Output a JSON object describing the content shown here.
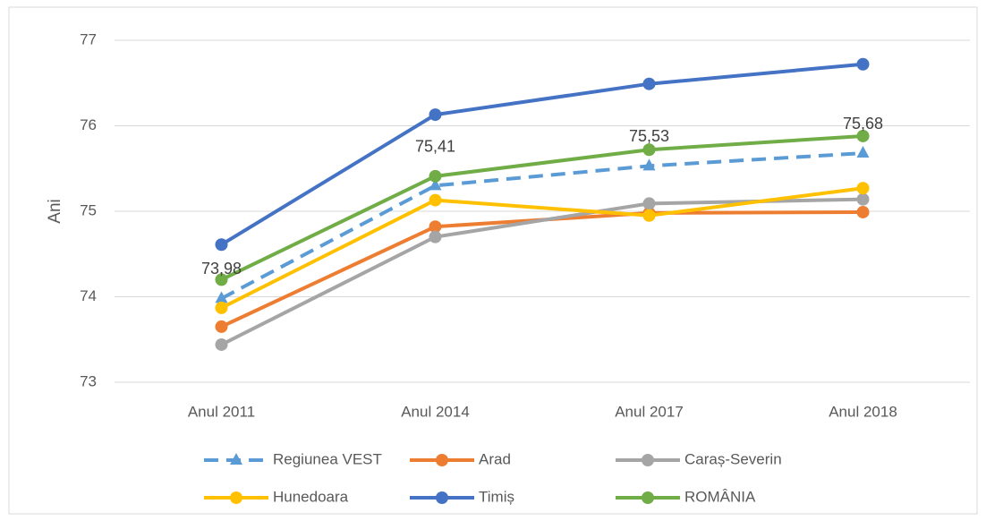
{
  "chart_data": {
    "type": "line",
    "y_label": "Ani",
    "categories": [
      "Anul 2011",
      "Anul 2014",
      "Anul 2017",
      "Anul 2018"
    ],
    "series": [
      {
        "name": "Regiunea VEST",
        "color": "#5b9bd5",
        "dashed": true,
        "marker": "triangle",
        "values": [
          73.98,
          75.3,
          75.53,
          75.68
        ],
        "value_labels": [
          "73,98",
          null,
          "75,53",
          "75,68"
        ]
      },
      {
        "name": "Arad",
        "color": "#ed7d31",
        "marker": "circle",
        "values": [
          73.65,
          74.82,
          74.98,
          74.99
        ]
      },
      {
        "name": "Caraș-Severin",
        "color": "#a5a5a5",
        "marker": "circle",
        "values": [
          73.44,
          74.7,
          75.09,
          75.14
        ]
      },
      {
        "name": "Hunedoara",
        "color": "#ffc000",
        "marker": "circle",
        "values": [
          73.87,
          75.13,
          74.95,
          75.27
        ]
      },
      {
        "name": "Timiș",
        "color": "#4472c4",
        "marker": "circle",
        "values": [
          74.61,
          76.13,
          76.49,
          76.72
        ]
      },
      {
        "name": "ROMÂNIA",
        "color": "#70ad47",
        "marker": "circle",
        "values": [
          74.2,
          75.41,
          75.72,
          75.88
        ],
        "value_labels": [
          null,
          "75,41",
          null,
          null
        ]
      }
    ],
    "ylim": [
      73,
      77
    ],
    "yticks": [
      73,
      74,
      75,
      76,
      77
    ],
    "grid": true,
    "legend": "bottom"
  }
}
